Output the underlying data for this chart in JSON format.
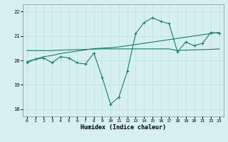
{
  "x": [
    0,
    1,
    2,
    3,
    4,
    5,
    6,
    7,
    8,
    9,
    10,
    11,
    12,
    13,
    14,
    15,
    16,
    17,
    18,
    19,
    20,
    21,
    22,
    23
  ],
  "line1_y": [
    19.9,
    20.05,
    20.1,
    19.9,
    20.15,
    20.1,
    19.9,
    19.85,
    20.3,
    19.3,
    18.2,
    18.5,
    19.55,
    21.1,
    21.55,
    21.75,
    21.6,
    21.5,
    20.35,
    20.75,
    20.6,
    20.7,
    21.15,
    21.1
  ],
  "line2_y": [
    20.4,
    20.4,
    20.4,
    20.4,
    20.42,
    20.43,
    20.44,
    20.45,
    20.46,
    20.47,
    20.47,
    20.47,
    20.47,
    20.47,
    20.47,
    20.47,
    20.47,
    20.47,
    20.4,
    20.42,
    20.43,
    20.44,
    20.45,
    20.47
  ],
  "line3_y": [
    19.95,
    20.05,
    20.15,
    20.2,
    20.28,
    20.33,
    20.38,
    20.43,
    20.48,
    20.5,
    20.52,
    20.55,
    20.6,
    20.65,
    20.7,
    20.75,
    20.8,
    20.85,
    20.9,
    20.95,
    21.0,
    21.05,
    21.1,
    21.15
  ],
  "line_color": "#1a7a6e",
  "bg_color": "#d6f0f0",
  "grid_color": "#c4e4e4",
  "xlabel": "Humidex (Indice chaleur)",
  "ylim": [
    17.7,
    22.3
  ],
  "xlim": [
    -0.5,
    23.5
  ],
  "yticks": [
    18,
    19,
    20,
    21,
    22
  ],
  "xticks": [
    0,
    1,
    2,
    3,
    4,
    5,
    6,
    7,
    8,
    9,
    10,
    11,
    12,
    13,
    14,
    15,
    16,
    17,
    18,
    19,
    20,
    21,
    22,
    23
  ]
}
